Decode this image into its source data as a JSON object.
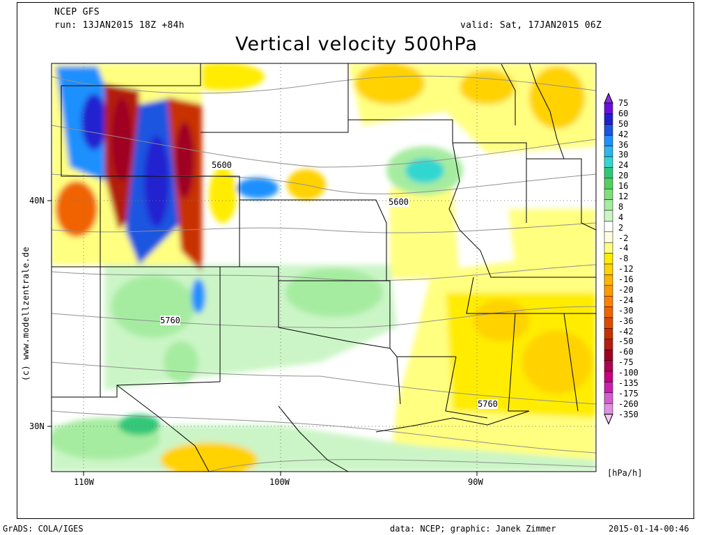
{
  "header": {
    "model": "NCEP GFS",
    "run": "run: 13JAN2015 18Z +84h",
    "valid": "valid: Sat, 17JAN2015 06Z",
    "title": "Vertical velocity 500hPa"
  },
  "map": {
    "lat_labels": [
      "40N",
      "30N"
    ],
    "lon_labels": [
      "110W",
      "100W",
      "90W"
    ],
    "contour_labels": [
      "5600",
      "5600",
      "5760",
      "5760"
    ],
    "credit": "(c) www.modellzentrale.de"
  },
  "legend": {
    "unit": "[hPa/h]",
    "levels": [
      "75",
      "60",
      "50",
      "42",
      "36",
      "30",
      "24",
      "20",
      "16",
      "12",
      "8",
      "4",
      "2",
      "-2",
      "-4",
      "-8",
      "-12",
      "-16",
      "-20",
      "-24",
      "-30",
      "-36",
      "-42",
      "-50",
      "-60",
      "-75",
      "-100",
      "-135",
      "-175",
      "-260",
      "-350"
    ],
    "colors": [
      "#8a2be2",
      "#6a10e0",
      "#2020d0",
      "#1c55e0",
      "#1e90ff",
      "#2fb6ef",
      "#33d6d0",
      "#30c878",
      "#52d15f",
      "#7ee07a",
      "#a6eca0",
      "#cbf5c6",
      "#ffffff",
      "#fffde0",
      "#ffff80",
      "#ffec00",
      "#ffd200",
      "#ffb400",
      "#ff9a00",
      "#ff8000",
      "#f06400",
      "#dd4a00",
      "#c83200",
      "#b41e10",
      "#a00020",
      "#b00050",
      "#c40080",
      "#cc20b0",
      "#d060d0",
      "#e090e0",
      "#f5c8f5"
    ]
  },
  "footer": {
    "left": "GrADS: COLA/IGES",
    "center": "data: NCEP; graphic: Janek Zimmer",
    "right": "2015-01-14-00:46"
  },
  "colors": {
    "white": "#ffffff",
    "pale_yellow": "#fffde0",
    "yellow": "#ffff80",
    "gold": "#ffec00",
    "orange": "#ffd200",
    "light_green": "#cbf5c6",
    "green": "#a6eca0"
  }
}
